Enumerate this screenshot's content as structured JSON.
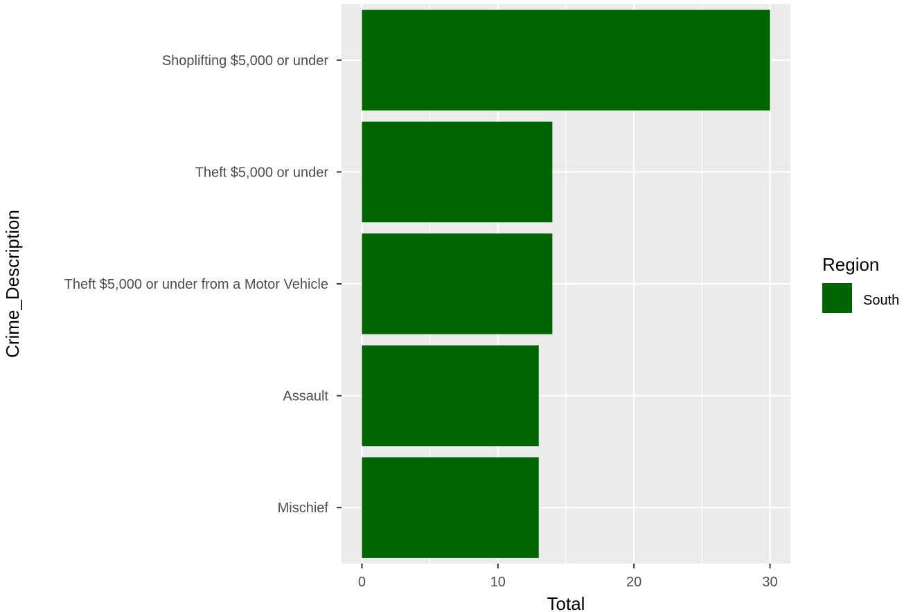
{
  "chart_data": {
    "type": "bar",
    "orientation": "horizontal",
    "categories": [
      "Shoplifting $5,000 or under",
      "Theft $5,000 or under",
      "Theft $5,000 or under from a Motor Vehicle",
      "Assault",
      "Mischief"
    ],
    "series": [
      {
        "name": "South",
        "values": [
          30,
          14,
          14,
          13,
          13
        ]
      }
    ],
    "xlabel": "Total",
    "ylabel": "Crime_Description",
    "xlim": [
      -1.5,
      31.5
    ],
    "xticks": [
      0,
      10,
      20,
      30
    ],
    "grid": true,
    "legend": {
      "title": "Region",
      "position": "right"
    },
    "colors": {
      "panel_background": "#ebebeb",
      "grid": "#ffffff",
      "bar_fill": "#006400"
    }
  }
}
